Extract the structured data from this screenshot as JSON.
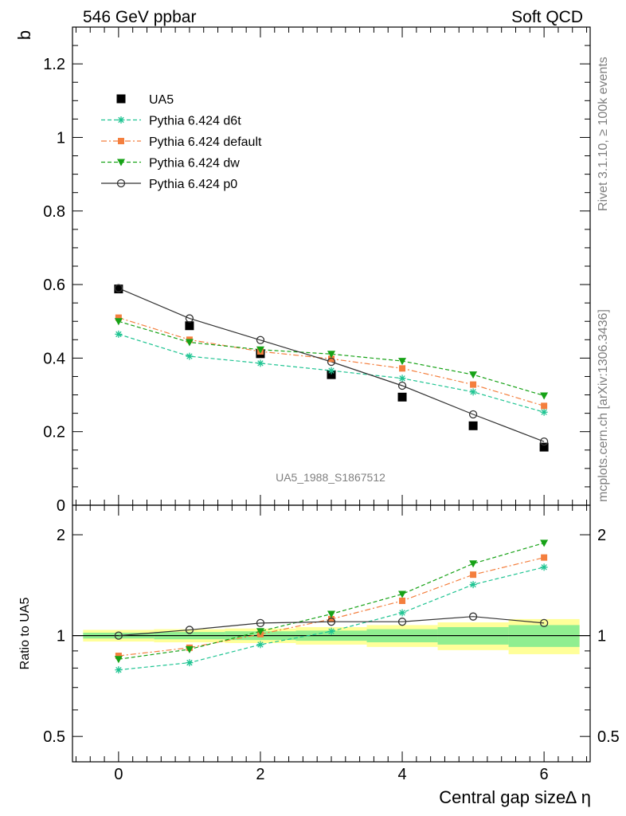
{
  "header": {
    "left": "546 GeV ppbar",
    "right": "Soft QCD"
  },
  "side_text": {
    "rivet": "Rivet 3.1.10, ≥ 100k events",
    "mcplots": "mcplots.cern.ch [arXiv:1306.3436]"
  },
  "watermark": "UA5_1988_S1867512",
  "chart_data": [
    {
      "type": "line",
      "panel": "main",
      "ylabel": "b",
      "ylim": [
        0,
        1.3
      ],
      "xlim": [
        -0.65,
        6.65
      ],
      "y_ticks": [
        {
          "value": 0,
          "label": "0"
        },
        {
          "value": 0.2,
          "label": "0.2"
        },
        {
          "value": 0.4,
          "label": "0.4"
        },
        {
          "value": 0.6,
          "label": "0.6"
        },
        {
          "value": 0.8,
          "label": "0.8"
        },
        {
          "value": 1.0,
          "label": "1"
        },
        {
          "value": 1.2,
          "label": "1.2"
        }
      ],
      "x": [
        0,
        1,
        2,
        3,
        4,
        5,
        6
      ],
      "legend_position": "top-left",
      "series": [
        {
          "name": "UA5",
          "marker": "square",
          "color": "#000000",
          "values": [
            0.588,
            0.488,
            0.412,
            0.355,
            0.294,
            0.216,
            0.158
          ]
        },
        {
          "name": "Pythia 6.424 d6t",
          "marker": "star",
          "color": "#1fc492",
          "dash": "dashed",
          "values": [
            0.465,
            0.405,
            0.386,
            0.366,
            0.345,
            0.308,
            0.253
          ]
        },
        {
          "name": "Pythia 6.424 default",
          "marker": "square-small",
          "color": "#f47f3e",
          "dash": "dashdot",
          "values": [
            0.51,
            0.45,
            0.418,
            0.398,
            0.372,
            0.328,
            0.27
          ]
        },
        {
          "name": "Pythia 6.424 dw",
          "marker": "triangle-down",
          "color": "#16a216",
          "dash": "dashed",
          "values": [
            0.5,
            0.443,
            0.423,
            0.411,
            0.392,
            0.355,
            0.298
          ]
        },
        {
          "name": "Pythia 6.424 p0",
          "marker": "circle-open",
          "color": "#333333",
          "dash": "solid",
          "values": [
            0.59,
            0.508,
            0.449,
            0.39,
            0.325,
            0.247,
            0.173
          ]
        }
      ]
    },
    {
      "type": "line",
      "panel": "ratio",
      "ylabel": "Ratio to UA5",
      "xlabel": "Central gap size∆ η",
      "y_scale": "log",
      "ylim": [
        0.42,
        2.45
      ],
      "x_ticks": [
        {
          "value": 0,
          "label": "0"
        },
        {
          "value": 2,
          "label": "2"
        },
        {
          "value": 4,
          "label": "4"
        },
        {
          "value": 6,
          "label": "6"
        }
      ],
      "y_ticks": [
        {
          "value": 0.5,
          "label": "0.5"
        },
        {
          "value": 1,
          "label": "1"
        },
        {
          "value": 2,
          "label": "2"
        }
      ],
      "x": [
        0,
        1,
        2,
        3,
        4,
        5,
        6
      ],
      "uncertainty_band": {
        "color_stat": "#90ee90",
        "color_total": "#ffff99",
        "inner_half_width": [
          0.02,
          0.025,
          0.03,
          0.035,
          0.045,
          0.06,
          0.075
        ],
        "outer_half_width": [
          0.04,
          0.045,
          0.05,
          0.06,
          0.075,
          0.095,
          0.12
        ]
      },
      "series": [
        {
          "name": "Pythia 6.424 d6t",
          "marker": "star",
          "color": "#1fc492",
          "values": [
            0.79,
            0.83,
            0.94,
            1.03,
            1.17,
            1.42,
            1.6
          ]
        },
        {
          "name": "Pythia 6.424 default",
          "marker": "square-small",
          "color": "#f47f3e",
          "values": [
            0.87,
            0.92,
            1.01,
            1.12,
            1.27,
            1.52,
            1.71
          ]
        },
        {
          "name": "Pythia 6.424 dw",
          "marker": "triangle-down",
          "color": "#16a216",
          "values": [
            0.85,
            0.91,
            1.03,
            1.16,
            1.33,
            1.64,
            1.89
          ]
        },
        {
          "name": "Pythia 6.424 p0",
          "marker": "circle-open",
          "color": "#333333",
          "values": [
            1.0,
            1.04,
            1.09,
            1.1,
            1.1,
            1.14,
            1.09
          ]
        }
      ]
    }
  ]
}
